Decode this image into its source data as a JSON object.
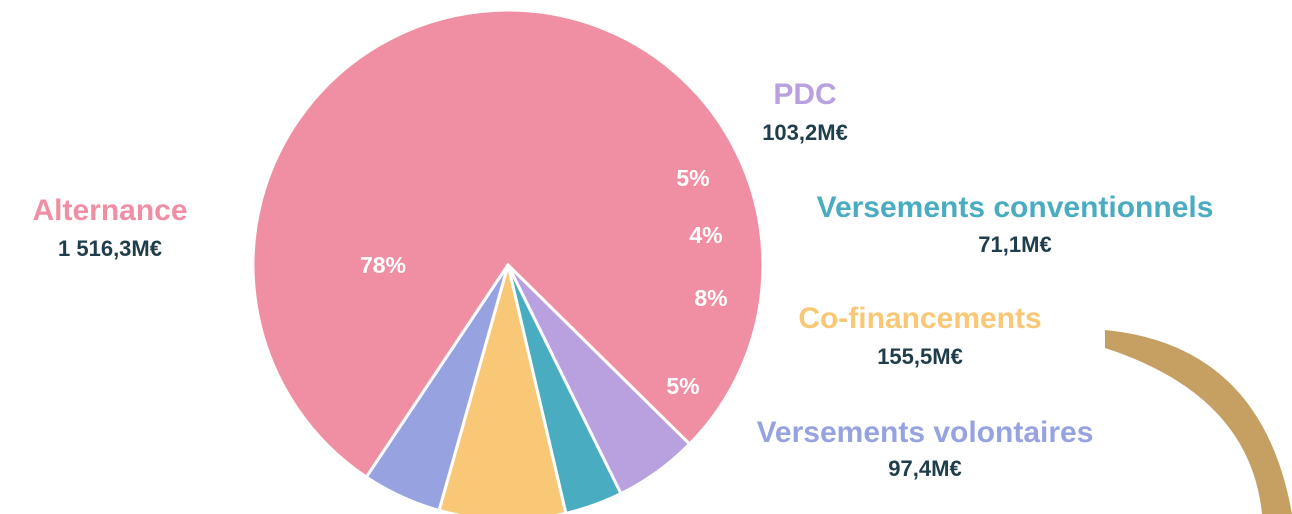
{
  "chart_data": {
    "type": "pie",
    "categories": [
      "Alternance",
      "PDC",
      "Versements conventionnels",
      "Co-financements",
      "Versements volontaires"
    ],
    "values": [
      1516.3,
      103.2,
      71.1,
      155.5,
      97.4
    ],
    "value_labels": [
      "1 516,3M€",
      "103,2M€",
      "71,1M€",
      "155,5M€",
      "97,4M€"
    ],
    "percent_labels": [
      "78%",
      "5%",
      "4%",
      "8%",
      "5%"
    ],
    "colors": [
      "#f08fa3",
      "#b9a0df",
      "#4aacc0",
      "#f9c877",
      "#97a3e0"
    ]
  }
}
